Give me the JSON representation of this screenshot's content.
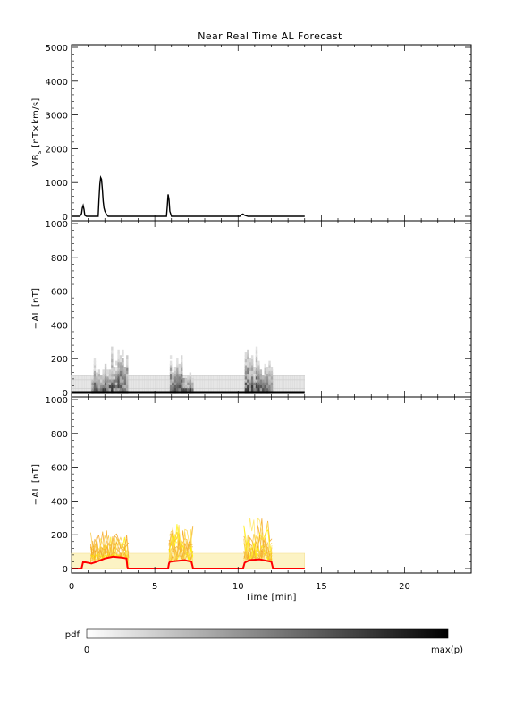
{
  "title": "Near Real Time AL Forecast",
  "colorbar": {
    "label": "pdf",
    "min_label": "0",
    "max_label": "max(p)"
  },
  "chart_data": [
    {
      "type": "line",
      "ylabel_main": "VB",
      "ylabel_sub": "s",
      "ylabel_unit": " [nT×km/s]",
      "xlim": [
        0,
        24
      ],
      "ylim": [
        0,
        5000
      ],
      "yticks": [
        "0",
        "1000",
        "2000",
        "3000",
        "4000",
        "5000"
      ],
      "series": [
        {
          "x": [
            0,
            0.5,
            0.6,
            0.65,
            0.7,
            0.75,
            0.8,
            0.9,
            1.6,
            1.65,
            1.7,
            1.75,
            1.8,
            1.85,
            1.9,
            1.95,
            2.0,
            2.1,
            2.2,
            5.7,
            5.75,
            5.8,
            5.85,
            5.9,
            6.0,
            10.1,
            10.2,
            10.3,
            10.4,
            10.6,
            14.0
          ],
          "y": [
            0,
            0,
            80,
            250,
            320,
            200,
            30,
            0,
            0,
            500,
            950,
            1150,
            1100,
            800,
            450,
            250,
            150,
            60,
            0,
            0,
            300,
            650,
            500,
            150,
            0,
            0,
            50,
            70,
            30,
            0,
            0
          ]
        }
      ]
    },
    {
      "type": "heatmap",
      "ylabel": "−AL [nT]",
      "xlim": [
        0,
        24
      ],
      "ylim": [
        0,
        1000
      ],
      "yticks": [
        "0",
        "200",
        "400",
        "600",
        "800",
        "1000"
      ],
      "active_intervals": [
        [
          1.2,
          3.4
        ],
        [
          5.9,
          7.3
        ],
        [
          10.4,
          12.0
        ]
      ],
      "baseline": [
        0,
        14
      ],
      "peaks": [
        250,
        340,
        300,
        200,
        340,
        280
      ]
    },
    {
      "type": "line",
      "ylabel": "−AL [nT]",
      "xlabel": "Time [min]",
      "xlim": [
        0,
        24
      ],
      "ylim": [
        0,
        1000
      ],
      "yticks": [
        "0",
        "200",
        "400",
        "600",
        "800",
        "1000"
      ],
      "xticks": [
        "0",
        "5",
        "10",
        "15",
        "20"
      ],
      "band": [
        0,
        14,
        0,
        90
      ],
      "median": {
        "x": [
          0,
          0.6,
          0.7,
          1.2,
          1.5,
          2.0,
          2.5,
          3.0,
          3.3,
          3.35,
          3.4,
          5.8,
          5.85,
          5.9,
          6.3,
          6.8,
          7.2,
          7.3,
          10.3,
          10.4,
          10.7,
          11.3,
          12.0,
          12.1,
          14.0
        ],
        "y": [
          0,
          0,
          40,
          30,
          40,
          60,
          70,
          65,
          60,
          10,
          0,
          0,
          30,
          40,
          45,
          50,
          40,
          0,
          0,
          35,
          50,
          55,
          40,
          0,
          0
        ]
      }
    }
  ]
}
